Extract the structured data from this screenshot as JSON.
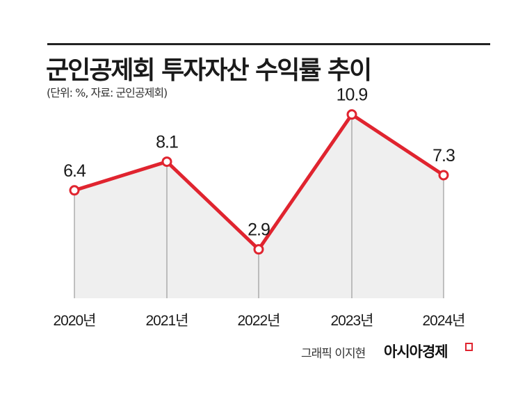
{
  "title": "군인공제회 투자자산 수익률 추이",
  "subtitle": "(단위: %, 자료: 군인공제회)",
  "credit": "그래픽 이지현",
  "brand": "아시아경제",
  "colors": {
    "line": "#e0242f",
    "area": "#efefef",
    "gridline": "#888888",
    "text": "#1a1a1a"
  },
  "chart_data": {
    "type": "line",
    "categories": [
      "2020년",
      "2021년",
      "2022년",
      "2023년",
      "2024년"
    ],
    "series": [
      {
        "values": [
          6.4,
          8.1,
          2.9,
          10.9,
          7.3
        ]
      }
    ],
    "data_labels": [
      "6.4",
      "8.1",
      "2.9",
      "10.9",
      "7.3"
    ],
    "ylim": [
      0,
      11
    ],
    "area_fill": true,
    "grid": false,
    "legend": "none"
  }
}
